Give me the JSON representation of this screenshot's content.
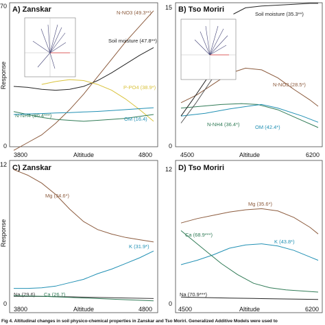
{
  "caption": "Fig 4. Altitudinal changes in soil physico-chemical properties in Zanskar and Tso Moriri. Generalized Additive Models were used to",
  "chart_data": [
    {
      "type": "line",
      "title": "A) Zanskar",
      "ylabel": "Response",
      "xlabel": "Altitude",
      "xlim": [
        3800,
        4800
      ],
      "ylim": [
        0,
        70
      ],
      "xticks": [
        "3800",
        "4800"
      ],
      "yticks": [
        "0",
        "70"
      ],
      "series": [
        {
          "name": "N-NO3 (49.3**)",
          "color": "#8b5a3c",
          "x": [
            3800,
            3900,
            4000,
            4100,
            4200,
            4300,
            4400,
            4500,
            4600,
            4700,
            4800
          ],
          "y": [
            -4,
            0,
            4,
            10,
            17,
            25,
            34,
            43,
            52,
            60,
            68
          ]
        },
        {
          "name": "Soil moisture (47.8**)",
          "color": "#222222",
          "x": [
            3800,
            3900,
            4000,
            4100,
            4200,
            4300,
            4400,
            4500,
            4600,
            4700,
            4800
          ],
          "y": [
            29,
            28.5,
            27.5,
            27,
            27.5,
            29,
            32,
            36,
            40.5,
            45,
            49
          ]
        },
        {
          "name": "P-PO4 (38.9*)",
          "color": "#d9c23a",
          "x": [
            4000,
            4100,
            4200,
            4300,
            4400,
            4500,
            4600,
            4700,
            4800
          ],
          "y": [
            30,
            31.5,
            32.5,
            32,
            30,
            27,
            22.5,
            17,
            11
          ]
        },
        {
          "name": "N-NH4 (80.4***)",
          "color": "#2f7a55",
          "x": [
            3800,
            3900,
            4000,
            4100,
            4200,
            4300,
            4400,
            4500,
            4600,
            4700,
            4800
          ],
          "y": [
            16,
            14.5,
            13,
            12,
            11.5,
            11,
            11.5,
            12,
            12.5,
            13.5,
            14.5
          ]
        },
        {
          "name": "OM (16.4)",
          "color": "#1f8fb3",
          "x": [
            3800,
            3900,
            4000,
            4100,
            4200,
            4300,
            4400,
            4500,
            4600,
            4700,
            4800
          ],
          "y": [
            14.5,
            14.8,
            15,
            15.3,
            15.5,
            15.8,
            16.1,
            16.5,
            17,
            17.5,
            18
          ]
        }
      ]
    },
    {
      "type": "line",
      "title": "B) Tso Moriri",
      "ylabel": "",
      "xlabel": "Altitude",
      "xlim": [
        4500,
        6200
      ],
      "ylim": [
        0,
        15
      ],
      "xticks": [
        "4500",
        "6200"
      ],
      "yticks": [
        "0",
        "15"
      ],
      "series": [
        {
          "name": "Soil moisture (35.3**)",
          "color": "#222222",
          "x": [
            5150,
            5300,
            5500,
            5700,
            5900,
            6100,
            6200
          ],
          "y": [
            14.5,
            15.2,
            15.4,
            15.5,
            15.6,
            15.7,
            15.7
          ]
        },
        {
          "name": "N-NO3 (28.5*)",
          "color": "#8b5a3c",
          "x": [
            4500,
            4700,
            4900,
            5100,
            5300,
            5500,
            5700,
            5900,
            6100,
            6200
          ],
          "y": [
            4.5,
            5.4,
            6.6,
            7.8,
            8.4,
            8.2,
            7.3,
            6.0,
            4.8,
            4.1
          ]
        },
        {
          "name": "N-NH4 (36.4*)",
          "color": "#2f7a55",
          "x": [
            4500,
            4750,
            5000,
            5250,
            5450,
            5700,
            5950,
            6200
          ],
          "y": [
            3.9,
            4.1,
            4.3,
            4.4,
            4.3,
            3.7,
            2.7,
            1.7
          ]
        },
        {
          "name": "OM (42.4*)",
          "color": "#1f8fb3",
          "x": [
            4500,
            4800,
            5100,
            5400,
            5500,
            5700,
            6000,
            6200
          ],
          "y": [
            3.0,
            3.3,
            3.8,
            4.2,
            4.3,
            3.9,
            3.0,
            2.3
          ]
        },
        {
          "name": "",
          "color": "#222222",
          "x": [
            4500,
            4650,
            4850,
            5050
          ],
          "y": [
            3.0,
            4.9,
            7.6,
            10.2
          ]
        },
        {
          "name": "",
          "color": "#555555",
          "x": [
            4500,
            4680,
            4880,
            5100
          ],
          "y": [
            2.2,
            4.4,
            7.1,
            9.8
          ]
        }
      ]
    },
    {
      "type": "line",
      "title": "C) Zanskar",
      "ylabel": "Response",
      "xlabel": "Altitude",
      "xlim": [
        3800,
        4800
      ],
      "ylim": [
        0,
        12
      ],
      "xticks": [
        "3800",
        "4800"
      ],
      "yticks": [
        "0",
        "12"
      ],
      "series": [
        {
          "name": "Mg (34.6*)",
          "color": "#8b5a3c",
          "x": [
            3800,
            3900,
            4000,
            4100,
            4200,
            4300,
            4400,
            4500,
            4600,
            4700,
            4800
          ],
          "y": [
            11.8,
            11.3,
            10.6,
            9.6,
            8.3,
            7.2,
            6.5,
            6.1,
            5.8,
            5.6,
            5.4
          ]
        },
        {
          "name": "K (31.9*)",
          "color": "#1f8fb3",
          "x": [
            3800,
            3900,
            4000,
            4100,
            4200,
            4300,
            4400,
            4500,
            4600,
            4700,
            4800
          ],
          "y": [
            1.3,
            1.3,
            1.35,
            1.5,
            1.8,
            2.1,
            2.6,
            3.0,
            3.5,
            4.0,
            4.6
          ]
        },
        {
          "name": "Na (29.6)",
          "color": "#333333",
          "x": [
            3800,
            4000,
            4200,
            4400,
            4600,
            4800
          ],
          "y": [
            0.6,
            0.58,
            0.55,
            0.5,
            0.45,
            0.4
          ]
        },
        {
          "name": "Ca (26.7)",
          "color": "#2f7a55",
          "x": [
            3800,
            4000,
            4200,
            4400,
            4600,
            4800
          ],
          "y": [
            0.65,
            0.6,
            0.5,
            0.4,
            0.3,
            0.2
          ]
        }
      ]
    },
    {
      "type": "line",
      "title": "D) Tso Moriri",
      "ylabel": "",
      "xlabel": "Altitude",
      "xlim": [
        4500,
        6200
      ],
      "ylim": [
        0,
        12
      ],
      "xticks": [
        "4500",
        "6200"
      ],
      "yticks": [
        "0",
        "12"
      ],
      "series": [
        {
          "name": "Mg (35.6*)",
          "color": "#8b5a3c",
          "x": [
            4500,
            4700,
            4900,
            5100,
            5300,
            5500,
            5700,
            5900,
            6100,
            6200
          ],
          "y": [
            7.3,
            7.7,
            8.0,
            8.3,
            8.5,
            8.6,
            8.4,
            7.8,
            6.9,
            6.3
          ]
        },
        {
          "name": "K (43.8*)",
          "color": "#1f8fb3",
          "x": [
            4500,
            4700,
            4900,
            5100,
            5300,
            5500,
            5700,
            5900,
            6100,
            6200
          ],
          "y": [
            3.5,
            3.9,
            4.4,
            5.0,
            5.3,
            5.4,
            5.2,
            4.8,
            4.2,
            3.9
          ]
        },
        {
          "name": "Ca (68.9***)",
          "color": "#2f7a55",
          "x": [
            4500,
            4600,
            4800,
            5000,
            5200,
            5400,
            5600,
            5800,
            6000,
            6200
          ],
          "y": [
            6.6,
            6.0,
            4.8,
            3.6,
            2.6,
            1.8,
            1.4,
            1.2,
            1.1,
            1.0
          ]
        },
        {
          "name": "Na (70.9***)",
          "color": "#222222",
          "x": [
            4500,
            4800,
            5100,
            5400,
            5700,
            6000,
            6200
          ],
          "y": [
            0.55,
            0.5,
            0.45,
            0.42,
            0.38,
            0.35,
            0.33
          ]
        }
      ]
    }
  ]
}
